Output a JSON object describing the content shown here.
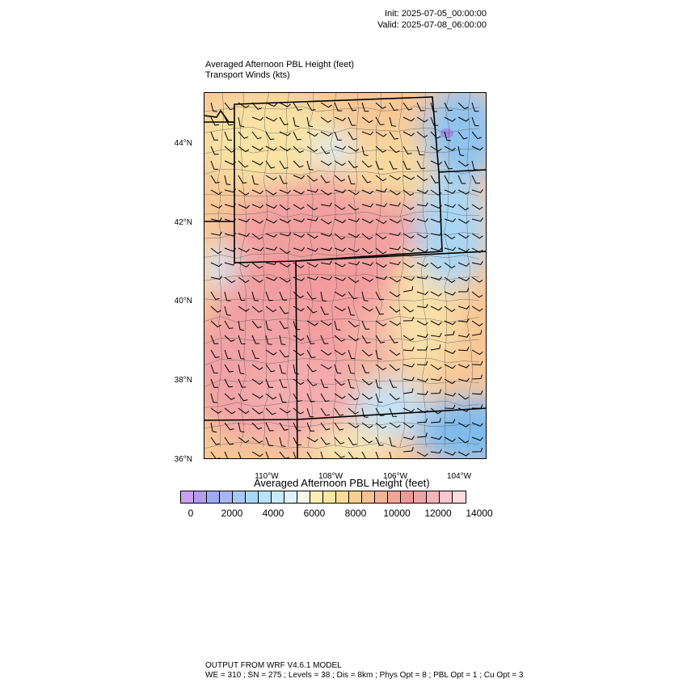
{
  "header": {
    "init": "Init: 2025-07-05_00:00:00",
    "valid": "Valid: 2025-07-08_06:00:00"
  },
  "plot": {
    "title": "Averaged Afternoon PBL Height   (feet)",
    "subtitle": "Transport Winds   (kts)",
    "lat_labels": [
      "44°N",
      "42°N",
      "40°N",
      "38°N",
      "36°N"
    ],
    "lon_labels": [
      "110°W",
      "108°W",
      "106°W",
      "104°W"
    ]
  },
  "colorbar": {
    "title": "Averaged Afternoon PBL Height  (feet)",
    "ticks": [
      "0",
      "2000",
      "4000",
      "6000",
      "8000",
      "10000",
      "12000",
      "14000"
    ],
    "colors": [
      "#c8a0f0",
      "#b49bf0",
      "#9fa8f4",
      "#a8b6f6",
      "#a8c8f4",
      "#a8d8f6",
      "#b8e2f8",
      "#c8eafa",
      "#e0f2fc",
      "#f6f6ea",
      "#faf0b4",
      "#fae6a0",
      "#fadc94",
      "#f8d092",
      "#f6c294",
      "#f4b496",
      "#f2a698",
      "#f0989c",
      "#f0a4a8",
      "#f4b4b8",
      "#f8c8cc",
      "#fcdcdc"
    ]
  },
  "footer": {
    "line1": "OUTPUT FROM WRF V4.6.1 MODEL",
    "line2": "WE = 310 ; SN = 275 ; Levels = 38 ; Dis = 8km ; Phys Opt = 8 ; PBL Opt = 1 ; Cu Opt = 3"
  }
}
